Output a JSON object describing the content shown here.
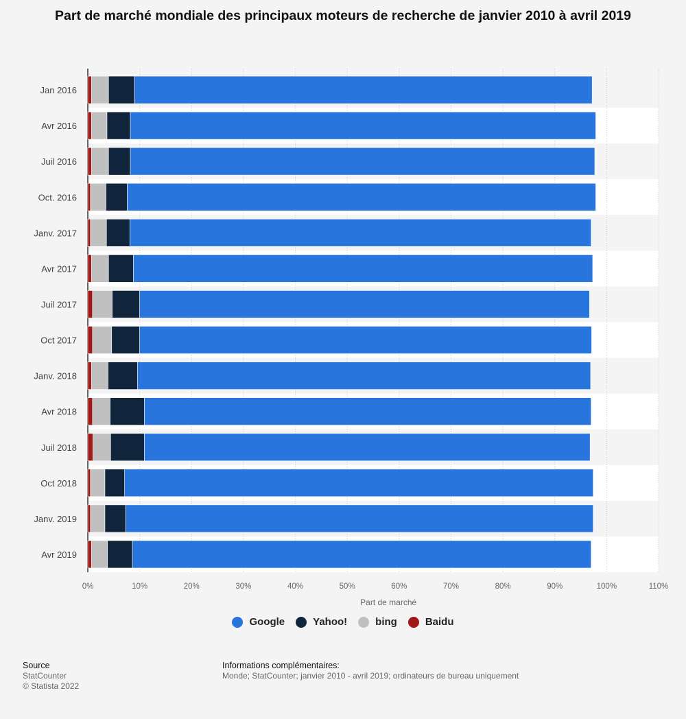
{
  "title": "Part de marché mondiale des principaux moteurs de recherche de janvier 2010 à avril 2019",
  "chart_data": {
    "type": "bar",
    "orientation": "horizontal",
    "stacked": true,
    "categories": [
      "Jan 2016",
      "Avr 2016",
      "Juil 2016",
      "Oct. 2016",
      "Janv. 2017",
      "Avr 2017",
      "Juil 2017",
      "Oct 2017",
      "Janv. 2018",
      "Avr 2018",
      "Juil 2018",
      "Oct 2018",
      "Janv. 2019",
      "Avr 2019"
    ],
    "series": [
      {
        "name": "Baidu",
        "color": "#a11818",
        "values": [
          0.7,
          0.7,
          0.7,
          0.5,
          0.5,
          0.7,
          0.9,
          0.9,
          0.7,
          0.9,
          1.0,
          0.5,
          0.5,
          0.7
        ]
      },
      {
        "name": "bing",
        "color": "#c0c0c0",
        "values": [
          3.3,
          3.0,
          3.3,
          3.0,
          3.1,
          3.3,
          3.8,
          3.7,
          3.2,
          3.4,
          3.4,
          2.8,
          2.8,
          3.1
        ]
      },
      {
        "name": "Yahoo!",
        "color": "#10243c",
        "values": [
          5.0,
          4.5,
          4.2,
          4.1,
          4.5,
          4.8,
          5.3,
          5.4,
          5.7,
          6.6,
          6.5,
          3.8,
          4.0,
          4.8
        ]
      },
      {
        "name": "Google",
        "color": "#2875dd",
        "values": [
          88.2,
          89.7,
          89.5,
          90.3,
          88.9,
          88.5,
          86.7,
          87.1,
          87.3,
          86.1,
          85.9,
          90.3,
          90.1,
          88.4
        ]
      }
    ],
    "xlabel": "Part de marché",
    "xlim": [
      0,
      110
    ],
    "xticks": [
      "0%",
      "10%",
      "20%",
      "30%",
      "40%",
      "50%",
      "60%",
      "70%",
      "80%",
      "90%",
      "100%",
      "110%"
    ],
    "legend_order": [
      "Google",
      "Yahoo!",
      "bing",
      "Baidu"
    ],
    "legend_position": "bottom",
    "grid": true
  },
  "footer": {
    "source_heading": "Source",
    "source_line1": "StatCounter",
    "source_line2": "© Statista 2022",
    "info_heading": "Informations complémentaires:",
    "info_text": "Monde; StatCounter; janvier 2010 - avril 2019; ordinateurs de bureau uniquement"
  }
}
